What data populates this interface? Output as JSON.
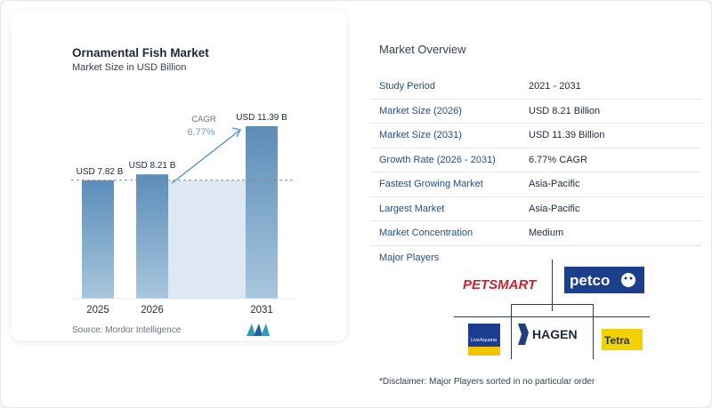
{
  "chart_data": {
    "type": "bar",
    "title": "Ornamental Fish Market",
    "subtitle": "Market Size in USD Billion",
    "categories": [
      "2025",
      "2026",
      "2031"
    ],
    "values": [
      7.82,
      8.21,
      11.39
    ],
    "data_labels": [
      "USD 7.82 B",
      "USD 8.21 B",
      "USD 11.39 B"
    ],
    "cagr_label": "CAGR",
    "cagr_value": "6.77%",
    "ylim": [
      0,
      12
    ],
    "grid": false,
    "colors": {
      "bar": "#5b8db8",
      "bar_fade": "#a9c6dd",
      "shade": "#dde8f2",
      "arrow": "#6a9ed0",
      "dashed": "#7a8ea4"
    }
  },
  "source_text": "Source: Mordor Intelligence",
  "overview": {
    "title": "Market Overview",
    "rows": [
      {
        "key": "Study Period",
        "value": "2021 - 2031"
      },
      {
        "key": "Market Size (2026)",
        "value": "USD 8.21 Billion"
      },
      {
        "key": "Market Size (2031)",
        "value": "USD 11.39 Billion"
      },
      {
        "key": "Growth Rate (2026 - 2031)",
        "value": "6.77% CAGR"
      },
      {
        "key": "Fastest Growing Market",
        "value": "Asia-Pacific"
      },
      {
        "key": "Largest Market",
        "value": "Asia-Pacific"
      },
      {
        "key": "Market Concentration",
        "value": "Medium"
      }
    ]
  },
  "players": {
    "label": "Major Players",
    "logos": [
      {
        "icon": "petsmart-logo",
        "text": "PETSMART"
      },
      {
        "icon": "petco-logo",
        "text": "petco"
      },
      {
        "icon": "liveaquaria-logo",
        "text": "LiveAquaria"
      },
      {
        "icon": "hagen-logo",
        "text": "HAGEN"
      },
      {
        "icon": "tetra-logo",
        "text": "Tetra"
      }
    ]
  },
  "disclaimer": "*Disclaimer: Major Players sorted in no particular order"
}
